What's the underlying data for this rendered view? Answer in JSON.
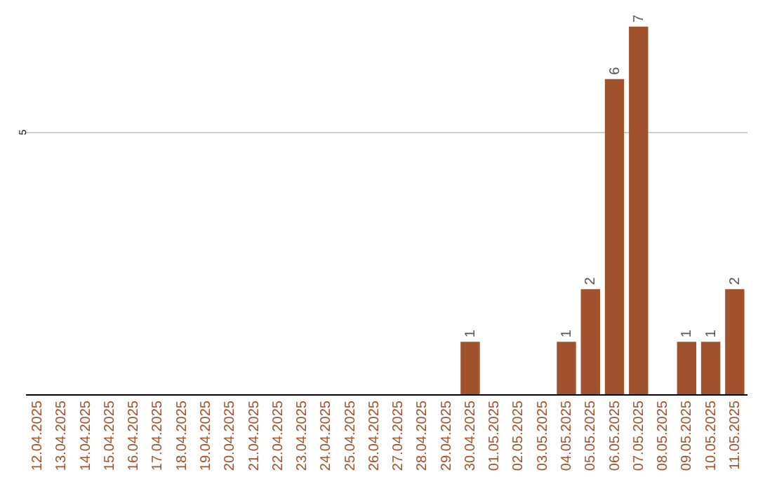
{
  "chart_data": {
    "type": "bar",
    "categories": [
      "12.04.2025",
      "13.04.2025",
      "14.04.2025",
      "15.04.2025",
      "16.04.2025",
      "17.04.2025",
      "18.04.2025",
      "19.04.2025",
      "20.04.2025",
      "21.04.2025",
      "22.04.2025",
      "23.04.2025",
      "24.04.2025",
      "25.04.2025",
      "26.04.2025",
      "27.04.2025",
      "28.04.2025",
      "29.04.2025",
      "30.04.2025",
      "01.05.2025",
      "02.05.2025",
      "03.05.2025",
      "04.05.2025",
      "05.05.2025",
      "06.05.2025",
      "07.05.2025",
      "08.05.2025",
      "09.05.2025",
      "10.05.2025",
      "11.05.2025"
    ],
    "values": [
      null,
      null,
      null,
      null,
      null,
      null,
      null,
      null,
      null,
      null,
      null,
      null,
      null,
      null,
      null,
      null,
      null,
      null,
      1,
      null,
      null,
      null,
      1,
      2,
      6,
      7,
      null,
      1,
      1,
      2
    ],
    "data_labels": true,
    "color": "#a0522d",
    "ylim": [
      0,
      7
    ],
    "yticks": [
      5
    ],
    "grid": "y"
  }
}
